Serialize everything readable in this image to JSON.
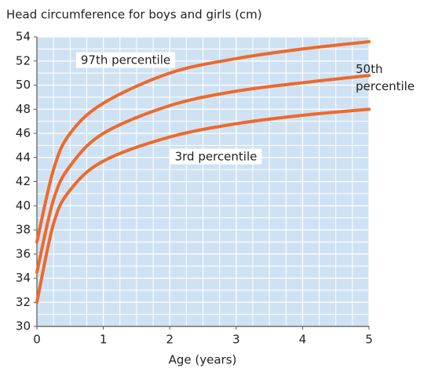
{
  "chart_data": {
    "type": "line",
    "title": "Head circumference for boys and girls (cm)",
    "x_label": "Age (years)",
    "x": [
      0,
      0.25,
      0.5,
      1,
      2,
      3,
      4,
      5
    ],
    "series": [
      {
        "name": "97th percentile",
        "color": "#ec6a2c",
        "values": [
          37,
          43,
          46,
          48.5,
          51,
          52.2,
          53,
          53.6
        ]
      },
      {
        "name": "50th percentile",
        "color": "#ec6a2c",
        "values": [
          34.5,
          40.5,
          43.3,
          46,
          48.3,
          49.5,
          50.2,
          50.8
        ]
      },
      {
        "name": "3rd percentile",
        "color": "#ec6a2c",
        "values": [
          32,
          38.5,
          41.3,
          43.7,
          45.7,
          46.8,
          47.5,
          48
        ]
      }
    ],
    "xlim": [
      0,
      5
    ],
    "xticks": [
      0,
      1,
      2,
      3,
      4,
      5
    ],
    "ylim": [
      30,
      54
    ],
    "yticks": [
      30,
      32,
      34,
      36,
      38,
      40,
      42,
      44,
      46,
      48,
      50,
      52,
      54
    ],
    "grid": true
  }
}
